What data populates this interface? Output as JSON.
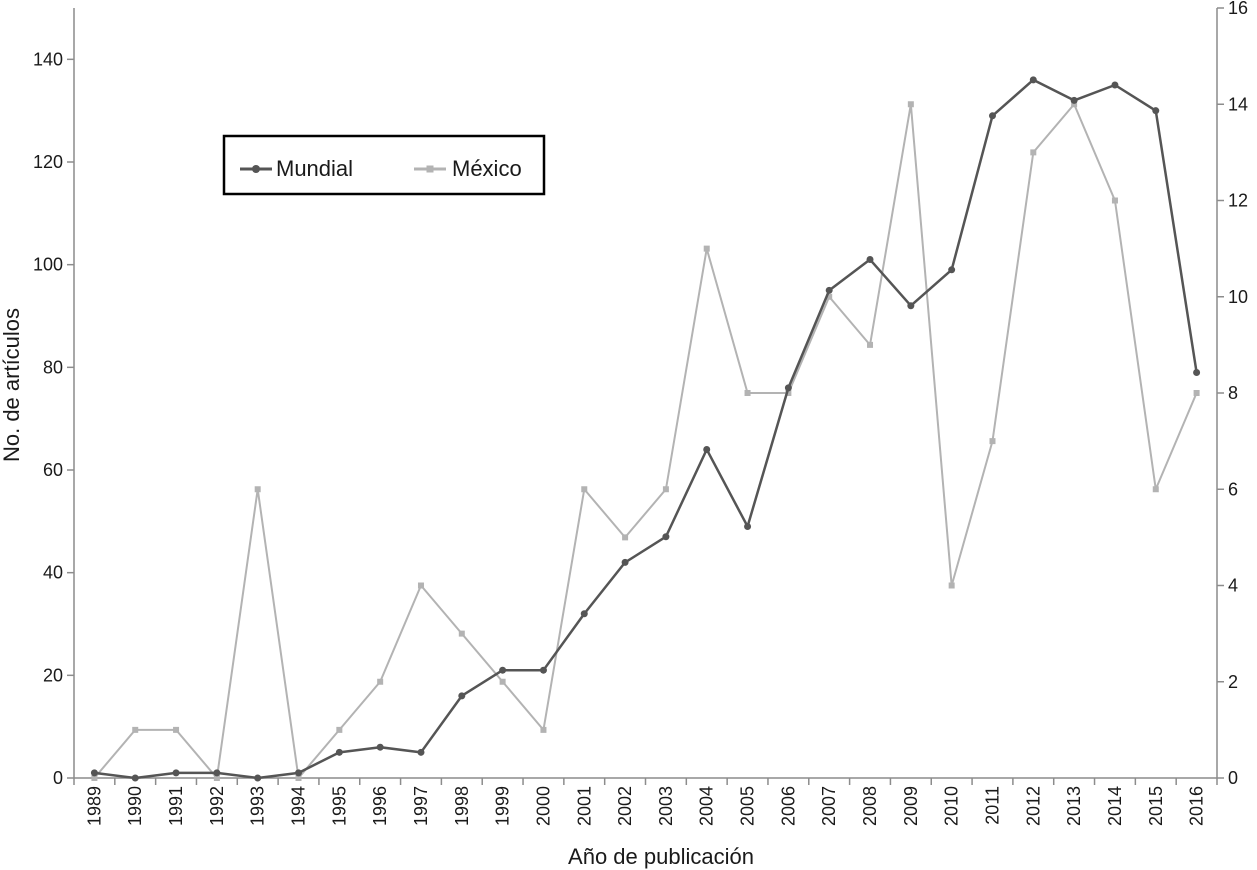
{
  "chart_data": {
    "type": "line",
    "xlabel": "Año de publicación",
    "ylabel": "No. de artículos",
    "categories": [
      "1989",
      "1990",
      "1991",
      "1992",
      "1993",
      "1994",
      "1995",
      "1996",
      "1997",
      "1998",
      "1999",
      "2000",
      "2001",
      "2002",
      "2003",
      "2004",
      "2005",
      "2006",
      "2007",
      "2008",
      "2009",
      "2010",
      "2011",
      "2012",
      "2013",
      "2014",
      "2015",
      "2016"
    ],
    "y_left": {
      "min": 0,
      "max": 150,
      "ticks": [
        0,
        20,
        40,
        60,
        80,
        100,
        120,
        140
      ]
    },
    "y_right": {
      "min": 0,
      "max": 16,
      "ticks": [
        0,
        2,
        4,
        6,
        8,
        10,
        12,
        14,
        16
      ]
    },
    "series": [
      {
        "name": "Mundial",
        "axis": "left",
        "color": "#555555",
        "marker": "circle",
        "values": [
          1,
          0,
          1,
          1,
          0,
          1,
          5,
          6,
          5,
          16,
          21,
          21,
          32,
          42,
          47,
          64,
          49,
          76,
          95,
          101,
          92,
          99,
          129,
          136,
          132,
          135,
          130,
          79
        ]
      },
      {
        "name": "México",
        "axis": "right",
        "color": "#b3b3b3",
        "marker": "square",
        "values": [
          0,
          1,
          1,
          0,
          6,
          0,
          1,
          2,
          4,
          3,
          2,
          1,
          6,
          5,
          6,
          11,
          8,
          8,
          10,
          9,
          14,
          4,
          7,
          13,
          14,
          12,
          6,
          8
        ]
      }
    ],
    "legend": {
      "position": "top-left",
      "boxed": true
    },
    "grid": false
  }
}
